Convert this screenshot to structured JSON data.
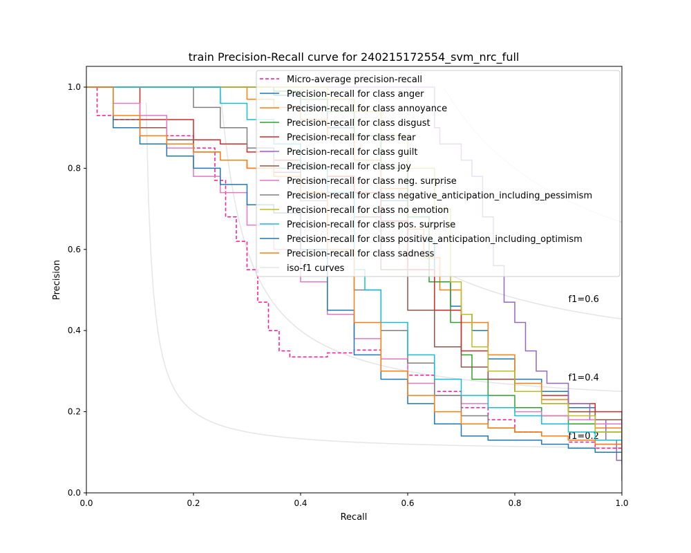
{
  "chart_data": {
    "type": "line",
    "title": "train Precision-Recall curve for 240215172554_svm_nrc_full",
    "xlabel": "Recall",
    "ylabel": "Precision",
    "xlim": [
      0.0,
      1.0
    ],
    "ylim": [
      0.0,
      1.05
    ],
    "xticks": [
      "0.0",
      "0.2",
      "0.4",
      "0.6",
      "0.8",
      "1.0"
    ],
    "yticks": [
      "0.0",
      "0.2",
      "0.4",
      "0.6",
      "0.8",
      "1.0"
    ],
    "grid": false,
    "legend_position": "top-right",
    "iso_f1": {
      "legend_name": "iso-f1 curves",
      "color": "#cccccc",
      "levels": [
        {
          "f1": 0.2,
          "label": "f1=0.2"
        },
        {
          "f1": 0.4,
          "label": "f1=0.4"
        },
        {
          "f1": 0.6,
          "label": "f1=0.6"
        },
        {
          "f1": 0.8,
          "label": ""
        }
      ]
    },
    "series": [
      {
        "name": "Micro-average precision-recall",
        "color": "#ff1493",
        "dash": true,
        "x": [
          0.0,
          0.015,
          0.02,
          0.05,
          0.1,
          0.15,
          0.2,
          0.24,
          0.26,
          0.28,
          0.3,
          0.32,
          0.34,
          0.36,
          0.38,
          0.4,
          0.45,
          0.5,
          0.55,
          0.6,
          0.65,
          0.7,
          0.75,
          0.8,
          0.85,
          0.9,
          0.95,
          1.0
        ],
        "y": [
          1.0,
          1.0,
          0.93,
          0.92,
          0.9,
          0.88,
          0.85,
          0.77,
          0.68,
          0.62,
          0.55,
          0.47,
          0.4,
          0.35,
          0.335,
          0.335,
          0.345,
          0.352,
          0.33,
          0.29,
          0.25,
          0.21,
          0.18,
          0.15,
          0.14,
          0.125,
          0.11,
          0.095
        ]
      },
      {
        "name": "Precision-recall for class anger",
        "color": "#1f77b4",
        "dash": false,
        "x": [
          0.0,
          0.3,
          0.35,
          0.4,
          0.45,
          0.5,
          0.55,
          0.6,
          0.65,
          0.68,
          0.7,
          0.72,
          0.75,
          0.8,
          0.85,
          0.9,
          0.95,
          1.0
        ],
        "y": [
          1.0,
          1.0,
          0.98,
          0.95,
          0.9,
          0.82,
          0.72,
          0.62,
          0.52,
          0.46,
          0.44,
          0.4,
          0.33,
          0.28,
          0.25,
          0.21,
          0.18,
          0.1
        ]
      },
      {
        "name": "Precision-recall for class annoyance",
        "color": "#ff7f0e",
        "dash": false,
        "x": [
          0.0,
          0.25,
          0.3,
          0.35,
          0.4,
          0.45,
          0.5,
          0.55,
          0.6,
          0.63,
          0.66,
          0.7,
          0.75,
          0.8,
          0.85,
          0.9,
          0.95,
          1.0
        ],
        "y": [
          1.0,
          1.0,
          0.97,
          0.95,
          0.92,
          0.88,
          0.82,
          0.75,
          0.65,
          0.58,
          0.5,
          0.42,
          0.34,
          0.27,
          0.23,
          0.2,
          0.16,
          0.08
        ]
      },
      {
        "name": "Precision-recall for class disgust",
        "color": "#2ca02c",
        "dash": false,
        "x": [
          0.0,
          0.3,
          0.35,
          0.4,
          0.45,
          0.5,
          0.55,
          0.6,
          0.64,
          0.68,
          0.7,
          0.72,
          0.75,
          0.8,
          0.85,
          0.9,
          0.95,
          1.0
        ],
        "y": [
          1.0,
          1.0,
          0.99,
          0.97,
          0.94,
          0.88,
          0.8,
          0.68,
          0.52,
          0.42,
          0.34,
          0.28,
          0.24,
          0.21,
          0.19,
          0.17,
          0.15,
          0.1
        ]
      },
      {
        "name": "Precision-recall for class fear",
        "color": "#d62728",
        "dash": false,
        "x": [
          0.0,
          0.02,
          0.1,
          0.2,
          0.25,
          0.3,
          0.35,
          0.4,
          0.45,
          0.5,
          0.55,
          0.6,
          0.65,
          0.7,
          0.75,
          0.8,
          0.85,
          0.9,
          0.95,
          1.0
        ],
        "y": [
          1.0,
          1.0,
          0.92,
          0.87,
          0.86,
          0.84,
          0.82,
          0.8,
          0.78,
          0.74,
          0.67,
          0.55,
          0.45,
          0.35,
          0.28,
          0.25,
          0.24,
          0.22,
          0.2,
          0.1
        ]
      },
      {
        "name": "Precision-recall for class guilt",
        "color": "#9467bd",
        "dash": false,
        "x": [
          0.0,
          0.6,
          0.65,
          0.66,
          0.7,
          0.72,
          0.74,
          0.76,
          0.78,
          0.8,
          0.82,
          0.84,
          0.86,
          0.9,
          0.94,
          0.97,
          0.99,
          1.0
        ],
        "y": [
          1.0,
          1.0,
          0.9,
          0.86,
          0.82,
          0.78,
          0.68,
          0.56,
          0.47,
          0.42,
          0.35,
          0.3,
          0.27,
          0.22,
          0.18,
          0.13,
          0.08,
          0.03
        ]
      },
      {
        "name": "Precision-recall for class joy",
        "color": "#8c564b",
        "dash": false,
        "x": [
          0.0,
          0.02,
          0.05,
          0.1,
          0.15,
          0.2,
          0.25,
          0.3,
          0.35,
          0.4,
          0.45,
          0.5,
          0.55,
          0.6,
          0.65,
          0.7,
          0.75,
          0.8,
          0.85,
          0.9,
          0.95,
          1.0
        ],
        "y": [
          1.0,
          1.0,
          0.92,
          0.9,
          0.87,
          0.84,
          0.82,
          0.8,
          0.79,
          0.77,
          0.74,
          0.68,
          0.55,
          0.45,
          0.36,
          0.31,
          0.28,
          0.25,
          0.22,
          0.2,
          0.18,
          0.14
        ]
      },
      {
        "name": "Precision-recall for class neg. surprise",
        "color": "#e377c2",
        "dash": false,
        "x": [
          0.0,
          0.02,
          0.05,
          0.1,
          0.15,
          0.2,
          0.25,
          0.3,
          0.35,
          0.4,
          0.45,
          0.5,
          0.55,
          0.6,
          0.65,
          0.7,
          0.75,
          0.8,
          0.85,
          0.9,
          0.95,
          1.0
        ],
        "y": [
          1.0,
          1.0,
          0.96,
          0.93,
          0.85,
          0.78,
          0.74,
          0.66,
          0.6,
          0.52,
          0.44,
          0.38,
          0.33,
          0.27,
          0.24,
          0.22,
          0.21,
          0.2,
          0.19,
          0.18,
          0.17,
          0.15
        ]
      },
      {
        "name": "Precision-recall for class negative_anticipation_including_pessimism",
        "color": "#7f7f7f",
        "dash": false,
        "x": [
          0.0,
          0.15,
          0.2,
          0.25,
          0.3,
          0.35,
          0.4,
          0.45,
          0.5,
          0.55,
          0.6,
          0.65,
          0.7,
          0.75,
          0.8,
          0.85,
          0.9,
          0.95,
          1.0
        ],
        "y": [
          1.0,
          1.0,
          0.95,
          0.9,
          0.85,
          0.8,
          0.72,
          0.62,
          0.5,
          0.4,
          0.32,
          0.24,
          0.19,
          0.16,
          0.15,
          0.14,
          0.13,
          0.12,
          0.07
        ]
      },
      {
        "name": "Precision-recall for class no emotion",
        "color": "#bcbd22",
        "dash": false,
        "x": [
          0.0,
          0.4,
          0.45,
          0.5,
          0.55,
          0.6,
          0.65,
          0.68,
          0.7,
          0.72,
          0.75,
          0.8,
          0.85,
          0.9,
          0.95,
          1.0
        ],
        "y": [
          1.0,
          1.0,
          0.97,
          0.94,
          0.88,
          0.8,
          0.7,
          0.52,
          0.44,
          0.36,
          0.3,
          0.25,
          0.22,
          0.19,
          0.15,
          0.08
        ]
      },
      {
        "name": "Precision-recall for class pos. surprise",
        "color": "#17becf",
        "dash": false,
        "x": [
          0.0,
          0.2,
          0.25,
          0.3,
          0.35,
          0.4,
          0.45,
          0.5,
          0.52,
          0.55,
          0.6,
          0.65,
          0.7,
          0.75,
          0.8,
          0.85,
          0.9,
          0.95,
          1.0
        ],
        "y": [
          1.0,
          1.0,
          0.96,
          0.92,
          0.86,
          0.8,
          0.74,
          0.55,
          0.5,
          0.42,
          0.34,
          0.28,
          0.24,
          0.21,
          0.19,
          0.17,
          0.15,
          0.13,
          0.1
        ]
      },
      {
        "name": "Precision-recall for class positive_anticipation_including_optimism",
        "color": "#1f77b4",
        "dash": false,
        "x": [
          0.0,
          0.03,
          0.05,
          0.1,
          0.15,
          0.2,
          0.25,
          0.3,
          0.35,
          0.4,
          0.45,
          0.5,
          0.55,
          0.6,
          0.65,
          0.7,
          0.75,
          0.8,
          0.85,
          0.9,
          0.95,
          1.0
        ],
        "y": [
          1.0,
          1.0,
          0.9,
          0.86,
          0.83,
          0.8,
          0.76,
          0.71,
          0.69,
          0.6,
          0.45,
          0.34,
          0.28,
          0.22,
          0.17,
          0.14,
          0.13,
          0.13,
          0.12,
          0.11,
          0.1,
          0.08
        ]
      },
      {
        "name": "Precision-recall for class sadness",
        "color": "#ff7f0e",
        "dash": false,
        "x": [
          0.0,
          0.03,
          0.05,
          0.1,
          0.15,
          0.2,
          0.25,
          0.3,
          0.35,
          0.4,
          0.45,
          0.5,
          0.55,
          0.6,
          0.65,
          0.7,
          0.75,
          0.8,
          0.85,
          0.9,
          0.95,
          1.0
        ],
        "y": [
          1.0,
          1.0,
          0.93,
          0.88,
          0.86,
          0.84,
          0.82,
          0.8,
          0.78,
          0.74,
          0.6,
          0.42,
          0.3,
          0.24,
          0.2,
          0.17,
          0.16,
          0.15,
          0.14,
          0.13,
          0.12,
          0.08
        ]
      }
    ]
  }
}
